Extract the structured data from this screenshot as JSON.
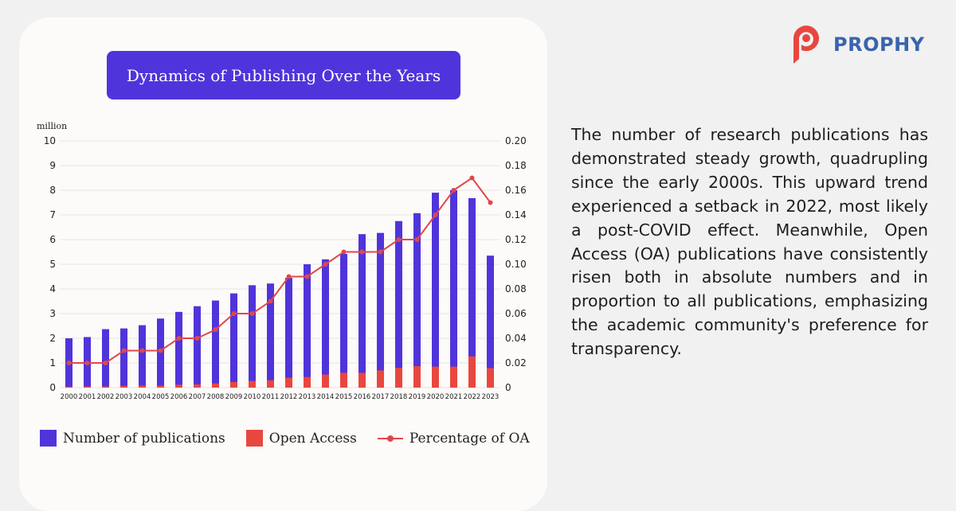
{
  "brand": {
    "name": "PROPHY",
    "accent": "#3a64ad",
    "logo_color": "#e8473f"
  },
  "description": "The number of research publications has demonstrated steady growth, quadrupling since the early 2000s. This upward trend experienced a setback in 2022, most likely a post-COVID effect. Meanwhile, Open Access (OA) publications have consistently risen both in absolute numbers and in proportion to all publications, emphasizing the academic community's preference for transparency.",
  "chart_data": {
    "type": "bar",
    "title": "Dynamics of Publishing Over the Years",
    "y_unit_label": "million",
    "categories": [
      "2000",
      "2001",
      "2002",
      "2003",
      "2004",
      "2005",
      "2006",
      "2007",
      "2008",
      "2009",
      "2010",
      "2011",
      "2012",
      "2013",
      "2014",
      "2015",
      "2016",
      "2017",
      "2018",
      "2019",
      "2020",
      "2021",
      "2022",
      "2023"
    ],
    "series": [
      {
        "name": "Number of publications",
        "type": "bar",
        "axis": "left",
        "color": "#5034db",
        "values": [
          2.0,
          2.05,
          2.37,
          2.4,
          2.53,
          2.8,
          3.07,
          3.3,
          3.53,
          3.82,
          4.15,
          4.22,
          4.45,
          5.0,
          5.2,
          5.42,
          6.22,
          6.27,
          6.75,
          7.07,
          7.9,
          8.0,
          7.68,
          5.35
        ]
      },
      {
        "name": "Open Access",
        "type": "bar",
        "axis": "left",
        "color": "#e8473f",
        "values": [
          0.04,
          0.05,
          0.05,
          0.07,
          0.08,
          0.08,
          0.12,
          0.13,
          0.17,
          0.23,
          0.27,
          0.3,
          0.4,
          0.43,
          0.53,
          0.6,
          0.6,
          0.7,
          0.8,
          0.87,
          0.85,
          0.85,
          1.27,
          0.79
        ]
      },
      {
        "name": "Percentage of OA",
        "type": "line",
        "axis": "right",
        "color": "#e0474a",
        "values": [
          0.02,
          0.02,
          0.02,
          0.03,
          0.03,
          0.03,
          0.04,
          0.04,
          0.047,
          0.06,
          0.06,
          0.07,
          0.09,
          0.09,
          0.1,
          0.11,
          0.11,
          0.11,
          0.12,
          0.12,
          0.14,
          0.16,
          0.17,
          0.15
        ]
      }
    ],
    "ylim_left": [
      0,
      10
    ],
    "yticks_left": [
      0,
      1,
      2,
      3,
      4,
      5,
      6,
      7,
      8,
      9,
      10
    ],
    "ylim_right": [
      0,
      0.2
    ],
    "yticks_right": [
      "0",
      "0.02",
      "0.04",
      "0.06",
      "0.08",
      "0.10",
      "0.12",
      "0.14",
      "0.16",
      "0.18",
      "0.20"
    ],
    "grid": true,
    "legend_position": "bottom"
  }
}
